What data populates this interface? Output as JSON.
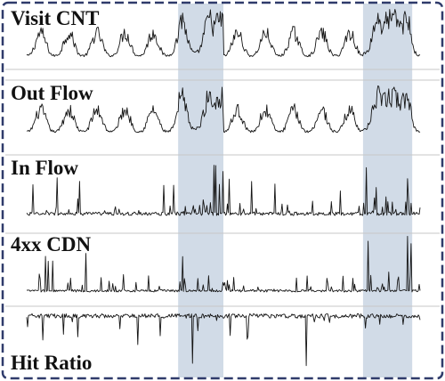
{
  "chart_data": {
    "type": "line",
    "title": "",
    "xlabel": "",
    "ylabel": "",
    "grid": false,
    "legend": "none",
    "colors": {
      "frame": "#2f3b6b",
      "highlight": "#c9d5e3",
      "series": "#151515",
      "separator": "#c7c7c7"
    },
    "highlight_bands": [
      {
        "start": 0.385,
        "end": 0.5
      },
      {
        "start": 0.855,
        "end": 0.98
      }
    ],
    "series": [
      {
        "name": "Visit CNT",
        "pattern": "daily-cycle-bursts",
        "baseline": 0.08,
        "peak": 0.95
      },
      {
        "name": "Out Flow",
        "pattern": "daily-cycle-bursts",
        "baseline": 0.08,
        "peak": 0.9
      },
      {
        "name": "In Flow",
        "pattern": "sparse-spikes-upward",
        "baseline": 0.08,
        "peak": 0.9
      },
      {
        "name": "4xx CDN",
        "pattern": "sparse-spikes-upward",
        "baseline": 0.05,
        "peak": 0.95
      },
      {
        "name": "Hit Ratio",
        "pattern": "sparse-spikes-downward",
        "baseline": 0.1,
        "peak": 1.0
      }
    ]
  }
}
